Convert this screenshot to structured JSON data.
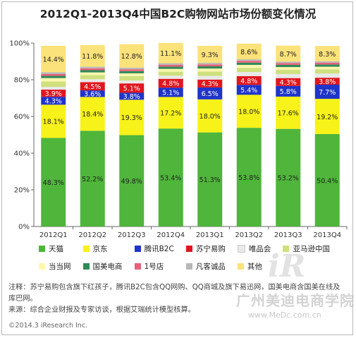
{
  "title": "2012Q1-2013Q4中国B2C购物网站市场份额变化情况",
  "chart_data": {
    "type": "bar",
    "stacked": true,
    "categories": [
      "2012Q1",
      "2012Q2",
      "2012Q3",
      "2012Q4",
      "2013Q1",
      "2013Q2",
      "2013Q3",
      "2013Q4"
    ],
    "ylim": [
      0,
      100
    ],
    "yticks": [
      "0%",
      "20%",
      "40%",
      "60%",
      "80%",
      "100%"
    ],
    "grid": false,
    "legend_position": "bottom",
    "series": [
      {
        "name": "天猫",
        "color": "#4fb53b",
        "values": [
          48.3,
          52.2,
          49.8,
          53.4,
          51.3,
          53.8,
          53.2,
          50.4
        ],
        "labels": [
          "48.3%",
          "52.2%",
          "49.8%",
          "53.4%",
          "51.3%",
          "53.8%",
          "53.2%",
          "50.4%"
        ],
        "label_color": "#222222"
      },
      {
        "name": "京东",
        "color": "#f7f219",
        "values": [
          18.1,
          18.4,
          19.3,
          17.2,
          18.0,
          18.0,
          17.6,
          19.2
        ],
        "labels": [
          "18.1%",
          "18.4%",
          "19.3%",
          "17.2%",
          "18.0%",
          "18.0%",
          "17.6%",
          "19.2%"
        ],
        "label_color": "#222222"
      },
      {
        "name": "腾讯B2C",
        "color": "#1f34c9",
        "values": [
          4.3,
          3.6,
          3.8,
          5.1,
          6.5,
          5.4,
          5.8,
          7.7
        ],
        "labels": [
          "4.3%",
          "3.6%",
          "3.8%",
          "5.1%",
          "6.5%",
          "5.4%",
          "5.8%",
          "7.7%"
        ],
        "label_color": "#ffffff"
      },
      {
        "name": "苏宁易购",
        "color": "#e0161d",
        "values": [
          3.9,
          4.5,
          5.1,
          4.8,
          4.3,
          4.8,
          4.3,
          3.8
        ],
        "labels": [
          "3.9%",
          "4.5%",
          "5.1%",
          "4.8%",
          "4.3%",
          "4.8%",
          "4.3%",
          "3.8%"
        ],
        "label_color": "#ffffff"
      },
      {
        "name": "唯品会",
        "color": "#e9e9e9",
        "values": [
          1.5,
          1.6,
          1.6,
          1.7,
          2.0,
          2.2,
          2.2,
          2.3
        ],
        "labels": [],
        "label_color": "#222222"
      },
      {
        "name": "亚马逊中国",
        "color": "#cfe07e",
        "values": [
          3.0,
          2.3,
          2.4,
          2.2,
          2.4,
          2.3,
          2.3,
          2.3
        ],
        "labels": [],
        "label_color": "#222222"
      },
      {
        "name": "当当网",
        "color": "#fff7ae",
        "values": [
          1.8,
          1.4,
          1.5,
          1.5,
          1.6,
          1.6,
          1.5,
          1.4
        ],
        "labels": [],
        "label_color": "#222222"
      },
      {
        "name": "国美电商",
        "color": "#2e8b57",
        "values": [
          1.2,
          1.2,
          1.2,
          1.2,
          1.2,
          1.2,
          1.2,
          1.2
        ],
        "labels": [],
        "label_color": "#222222"
      },
      {
        "name": "1号店",
        "color": "#e8607a",
        "values": [
          1.0,
          1.0,
          1.0,
          1.0,
          1.0,
          1.0,
          1.0,
          1.0
        ],
        "labels": [],
        "label_color": "#222222"
      },
      {
        "name": "凡客诚品",
        "color": "#b8b8b8",
        "values": [
          1.0,
          0.9,
          0.9,
          0.9,
          0.9,
          0.8,
          0.8,
          0.8
        ],
        "labels": [],
        "label_color": "#222222"
      },
      {
        "name": "其他",
        "color": "#fce27a",
        "values": [
          14.4,
          11.8,
          12.8,
          11.1,
          9.3,
          8.6,
          8.7,
          8.3
        ],
        "labels": [
          "14.4%",
          "11.8%",
          "12.8%",
          "11.1%",
          "9.3%",
          "8.6%",
          "8.7%",
          "8.3%"
        ],
        "label_color": "#222222"
      }
    ]
  },
  "notes": {
    "line1": "注释：苏宁易购包含旗下红孩子，腾讯B2C包含QQ网购、QQ商城及旗下易迅网，国美电商含国美在线及库巴网。",
    "line2": "来源：综合企业财报及专家访谈，根据艾瑞统计模型核算。"
  },
  "copyright": "©2014.3 iResearch Inc.",
  "watermark": {
    "text": "广州美迪电商学院",
    "url": "www.MeDc.com.cn",
    "logo": "iR"
  }
}
